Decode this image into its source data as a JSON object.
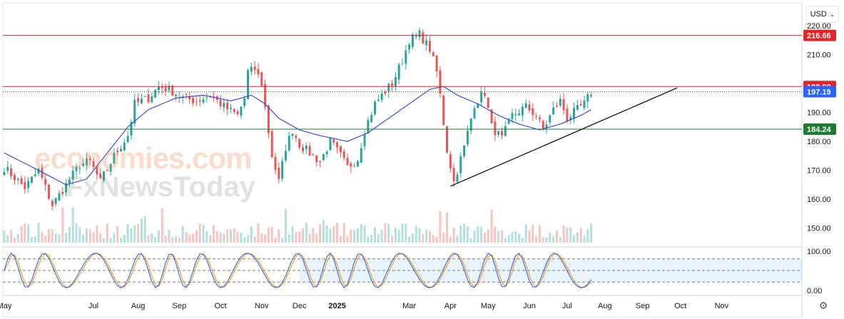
{
  "currency": "USD",
  "watermark": {
    "line1": "economies.com",
    "line2": "FxNewsToday"
  },
  "colors": {
    "up": "#26a69a",
    "down": "#ef5350",
    "ma": "#3f4bd1",
    "resistance": "#e0252b",
    "support": "#1b7d2f",
    "current": "#2962ff",
    "trendline": "#000000",
    "stoch_k": "#2962ff",
    "stoch_d": "#ff9800"
  },
  "chart_data": {
    "type": "candlestick",
    "y_axis_ticks": [
      "220.00",
      "210.00",
      "200.00",
      "190.00",
      "180.00",
      "170.00",
      "160.00",
      "150.00"
    ],
    "ylim": [
      145,
      222
    ],
    "x_axis_labels": [
      "May",
      "Jul",
      "Aug",
      "Sep",
      "Oct",
      "Nov",
      "Dec",
      "2025",
      "Mar",
      "Apr",
      "May",
      "Jun",
      "Jul",
      "Aug",
      "Sep",
      "Oct",
      "Nov"
    ],
    "horizontal_levels": [
      {
        "value": 216.66,
        "label": "216.66",
        "color": "resistance"
      },
      {
        "value": 198.98,
        "label": "198.98",
        "color": "resistance"
      },
      {
        "value": 184.24,
        "label": "184.24",
        "color": "support"
      }
    ],
    "current_price": {
      "value": 197.19,
      "label": "197.19"
    },
    "trendline": {
      "from": {
        "t": 130,
        "price": 164.5
      },
      "to": {
        "t": 196,
        "price": 198.5
      }
    },
    "price_anchors": [
      [
        0,
        171
      ],
      [
        6,
        164
      ],
      [
        10,
        170
      ],
      [
        14,
        158
      ],
      [
        18,
        165
      ],
      [
        22,
        172
      ],
      [
        25,
        173
      ],
      [
        28,
        166
      ],
      [
        32,
        175
      ],
      [
        36,
        182
      ],
      [
        38,
        193
      ],
      [
        42,
        195
      ],
      [
        45,
        199
      ],
      [
        48,
        198
      ],
      [
        52,
        195
      ],
      [
        56,
        194
      ],
      [
        60,
        196
      ],
      [
        64,
        192
      ],
      [
        68,
        189
      ],
      [
        70,
        195
      ],
      [
        71,
        204
      ],
      [
        73,
        205
      ],
      [
        75,
        200
      ],
      [
        78,
        175
      ],
      [
        80,
        166
      ],
      [
        82,
        178
      ],
      [
        84,
        184
      ],
      [
        86,
        179
      ],
      [
        89,
        176
      ],
      [
        92,
        173
      ],
      [
        95,
        180
      ],
      [
        98,
        175
      ],
      [
        100,
        171
      ],
      [
        103,
        174
      ],
      [
        105,
        184
      ],
      [
        108,
        193
      ],
      [
        110,
        196
      ],
      [
        113,
        200
      ],
      [
        116,
        208
      ],
      [
        118,
        215
      ],
      [
        121,
        217
      ],
      [
        124,
        212
      ],
      [
        126,
        204
      ],
      [
        127,
        196
      ],
      [
        129,
        177
      ],
      [
        131,
        166
      ],
      [
        134,
        178
      ],
      [
        137,
        193
      ],
      [
        140,
        197
      ],
      [
        142,
        185
      ],
      [
        145,
        181
      ],
      [
        148,
        189
      ],
      [
        152,
        192
      ],
      [
        155,
        189
      ],
      [
        157,
        184
      ],
      [
        160,
        191
      ],
      [
        162,
        194
      ],
      [
        164,
        188
      ],
      [
        167,
        191
      ],
      [
        169,
        193
      ],
      [
        171,
        197
      ]
    ],
    "ma_anchors": [
      [
        0,
        176
      ],
      [
        10,
        170
      ],
      [
        18,
        165
      ],
      [
        24,
        167
      ],
      [
        30,
        176
      ],
      [
        36,
        185
      ],
      [
        42,
        191
      ],
      [
        50,
        195
      ],
      [
        58,
        196
      ],
      [
        66,
        194
      ],
      [
        72,
        196
      ],
      [
        76,
        193
      ],
      [
        80,
        188
      ],
      [
        86,
        184
      ],
      [
        92,
        182
      ],
      [
        100,
        180
      ],
      [
        106,
        183
      ],
      [
        112,
        188
      ],
      [
        118,
        193
      ],
      [
        124,
        198
      ],
      [
        128,
        199
      ],
      [
        132,
        196
      ],
      [
        138,
        193
      ],
      [
        144,
        189
      ],
      [
        150,
        186
      ],
      [
        156,
        184
      ],
      [
        162,
        186
      ],
      [
        168,
        189
      ],
      [
        171,
        191
      ]
    ],
    "stoch_axis_ticks": [
      "100.00",
      "0.00"
    ],
    "stoch_range": [
      0,
      100
    ],
    "stoch_levels": [
      80,
      50,
      20
    ],
    "time_span": {
      "first_bar": 0,
      "last_bar": 171,
      "axis_end": 232
    }
  }
}
